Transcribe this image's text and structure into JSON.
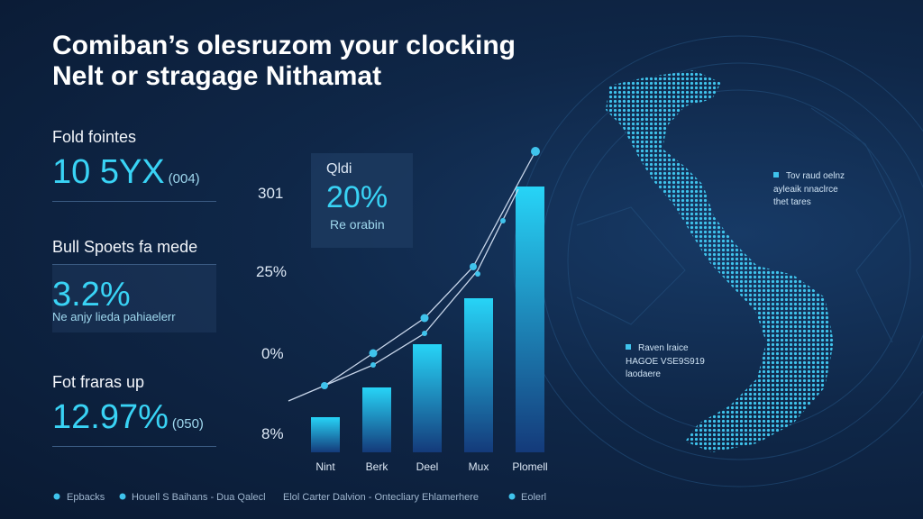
{
  "header": {
    "title_line1": "Comiban’s olesruzom your clocking",
    "title_line2": "Nelt or stragage Nithamat"
  },
  "stats": [
    {
      "label": "Fold fointes",
      "value": "10 5YX",
      "note": "(004)"
    },
    {
      "label": "Bull Spoets fa mede",
      "value": "3.2%",
      "note": "Ne anjy lieda pahiaelerr"
    },
    {
      "label": "Fot fraras up",
      "value": "12.97%",
      "note": "(050)"
    }
  ],
  "chart": {
    "axis_labels": [
      "301",
      "25%",
      "0%",
      "8%"
    ],
    "categories": [
      "Nint",
      "Berk",
      "Deel",
      "Mux",
      "Plomell"
    ],
    "callout": {
      "label": "Qldi",
      "value": "20%",
      "note": "Re orabin"
    }
  },
  "map": {
    "annotations": [
      {
        "lines": [
          "Tov raud oelnz",
          "ayleaik nnaclrce",
          "thet tares"
        ]
      },
      {
        "lines": [
          "Raven lraice",
          "HAGOE VSE9S919",
          "laodaere"
        ]
      }
    ]
  },
  "legend": [
    "Epbacks",
    "Houell S Baihans - Dua Qalecl",
    "Elol Carter Dalvion - Ontecliary Ehlamerhere",
    "Eolerl"
  ]
}
